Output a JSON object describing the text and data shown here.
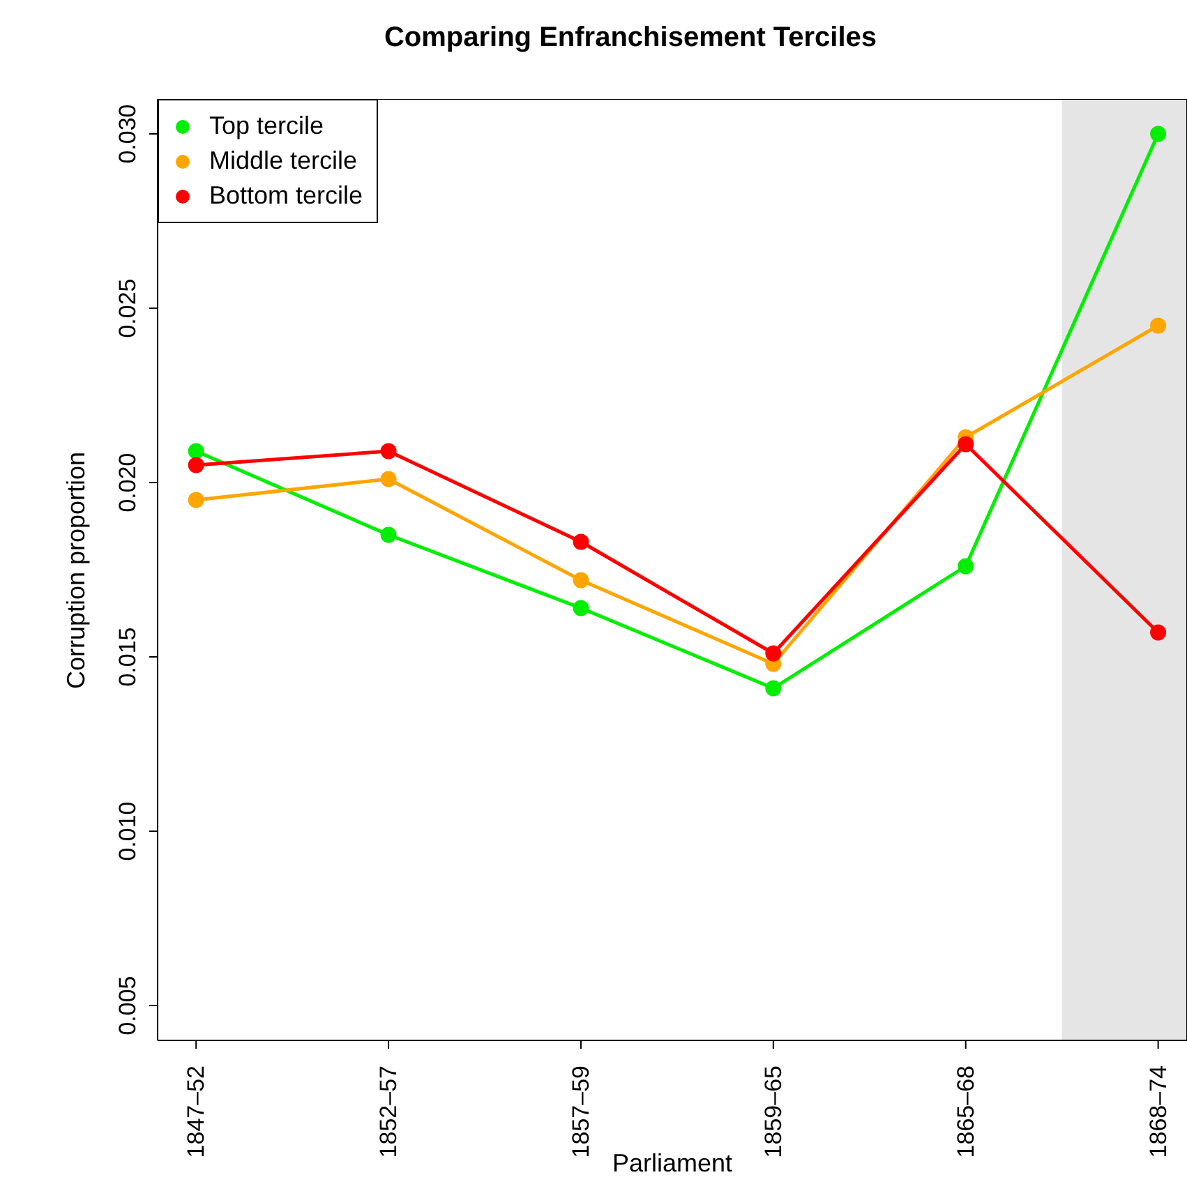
{
  "chart_data": {
    "type": "line",
    "title": "Comparing Enfranchisement Terciles",
    "xlabel": "Parliament",
    "ylabel": "Corruption proportion",
    "categories": [
      "1847–52",
      "1852–57",
      "1857–59",
      "1859–65",
      "1865–68",
      "1868–74"
    ],
    "series": [
      {
        "name": "Top tercile",
        "color": "#00ee00",
        "values": [
          0.0209,
          0.0185,
          0.0164,
          0.0141,
          0.0176,
          0.03
        ]
      },
      {
        "name": "Middle tercile",
        "color": "#ffa500",
        "values": [
          0.0195,
          0.0201,
          0.0172,
          0.0148,
          0.0213,
          0.0245
        ]
      },
      {
        "name": "Bottom tercile",
        "color": "#ff0000",
        "values": [
          0.0205,
          0.0209,
          0.0183,
          0.0151,
          0.0211,
          0.0157
        ]
      }
    ],
    "ylim": [
      0.004,
      0.031
    ],
    "yticks": [
      0.005,
      {
        "value": 0.01,
        "label": "0.010"
      },
      0.015,
      {
        "value": 0.02,
        "label": "0.020"
      },
      0.025,
      {
        "value": 0.03,
        "label": "0.030"
      }
    ],
    "bands": [
      {
        "axis": "x",
        "from": "1868–74",
        "to": "1868–74",
        "color": "#e5e5e5"
      }
    ],
    "legend": "top left",
    "marker": "circle",
    "line_style": "solid",
    "grid": false
  }
}
